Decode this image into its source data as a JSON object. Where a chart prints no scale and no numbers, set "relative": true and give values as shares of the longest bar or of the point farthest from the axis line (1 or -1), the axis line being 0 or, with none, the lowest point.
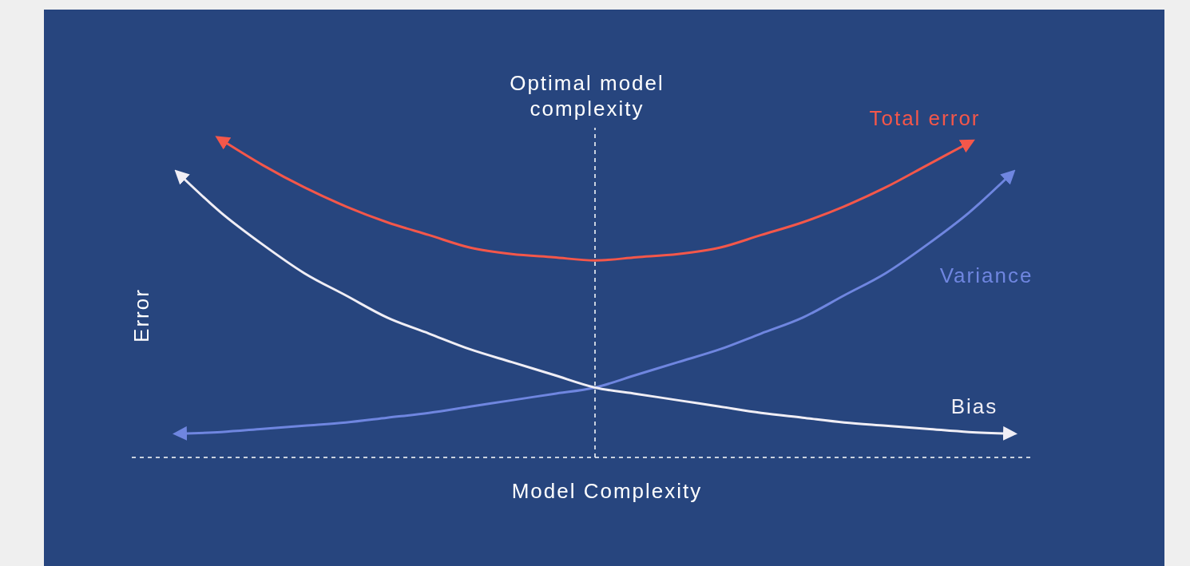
{
  "chart_data": {
    "type": "line",
    "relative": true,
    "xlabel": "Model Complexity",
    "ylabel": "Error",
    "categories": [
      null,
      null,
      null,
      null,
      null,
      null,
      null,
      null,
      null,
      null,
      null,
      null,
      null,
      null,
      null,
      null,
      null,
      null,
      null,
      null,
      null
    ],
    "series": [
      {
        "name": "Total error",
        "color": "#f4574a",
        "values": [
          null,
          1.0,
          0.92,
          0.85,
          0.79,
          0.74,
          0.7,
          0.66,
          0.64,
          0.63,
          0.62,
          0.63,
          0.64,
          0.66,
          0.7,
          0.74,
          0.79,
          0.85,
          0.92,
          0.99,
          null
        ]
      },
      {
        "name": "Variance",
        "color": "#6f86e0",
        "values": [
          0.075,
          0.08,
          0.09,
          0.1,
          0.11,
          0.125,
          0.14,
          0.16,
          0.18,
          0.2,
          0.22,
          0.26,
          0.3,
          0.34,
          0.39,
          0.44,
          0.51,
          0.58,
          0.67,
          0.77,
          0.89
        ]
      },
      {
        "name": "Bias",
        "color": "#f0eef5",
        "values": [
          0.89,
          0.77,
          0.67,
          0.58,
          0.51,
          0.44,
          0.39,
          0.34,
          0.3,
          0.26,
          0.22,
          0.2,
          0.18,
          0.16,
          0.14,
          0.125,
          0.11,
          0.1,
          0.09,
          0.08,
          0.075
        ]
      }
    ],
    "annotations": [
      "Optimal model complexity"
    ],
    "legend": false,
    "grid": false,
    "marker": "none",
    "line_style": "solid"
  }
}
